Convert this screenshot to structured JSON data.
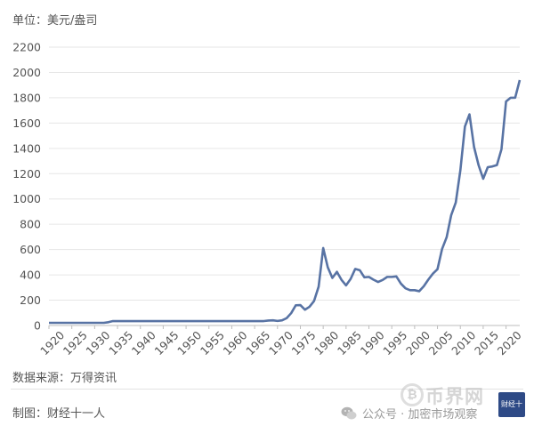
{
  "unit_label": "单位：美元/盎司",
  "footer": {
    "source": "数据来源：万得资讯",
    "maker": "制图：财经十一人",
    "wechat_account": "公众号 · 加密市场观察",
    "watermark_text": "币界网",
    "watermark_box_text": "财经十一人"
  },
  "chart_data": {
    "type": "line",
    "title": "",
    "xlabel": "",
    "ylabel": "",
    "ylim": [
      0,
      2200
    ],
    "xlim": [
      1920,
      2023
    ],
    "yticks": [
      0,
      200,
      400,
      600,
      800,
      1000,
      1200,
      1400,
      1600,
      1800,
      2000,
      2200
    ],
    "xticks": [
      1920,
      1925,
      1930,
      1935,
      1940,
      1945,
      1950,
      1955,
      1960,
      1965,
      1970,
      1975,
      1980,
      1985,
      1990,
      1995,
      2000,
      2005,
      2010,
      2015,
      2020
    ],
    "grid": true,
    "line_color": "#5873a4",
    "x": [
      1920,
      1921,
      1922,
      1923,
      1924,
      1925,
      1926,
      1927,
      1928,
      1929,
      1930,
      1931,
      1932,
      1933,
      1934,
      1935,
      1936,
      1937,
      1938,
      1939,
      1940,
      1941,
      1942,
      1943,
      1944,
      1945,
      1946,
      1947,
      1948,
      1949,
      1950,
      1951,
      1952,
      1953,
      1954,
      1955,
      1956,
      1957,
      1958,
      1959,
      1960,
      1961,
      1962,
      1963,
      1964,
      1965,
      1966,
      1967,
      1968,
      1969,
      1970,
      1971,
      1972,
      1973,
      1974,
      1975,
      1976,
      1977,
      1978,
      1979,
      1980,
      1981,
      1982,
      1983,
      1984,
      1985,
      1986,
      1987,
      1988,
      1989,
      1990,
      1991,
      1992,
      1993,
      1994,
      1995,
      1996,
      1997,
      1998,
      1999,
      2000,
      2001,
      2002,
      2003,
      2004,
      2005,
      2006,
      2007,
      2008,
      2009,
      2010,
      2011,
      2012,
      2013,
      2014,
      2015,
      2016,
      2017,
      2018,
      2019,
      2020,
      2021,
      2022,
      2023
    ],
    "values": [
      21,
      21,
      21,
      21,
      21,
      21,
      21,
      21,
      21,
      21,
      21,
      21,
      21,
      26,
      35,
      35,
      35,
      35,
      35,
      35,
      35,
      35,
      35,
      35,
      35,
      35,
      35,
      35,
      35,
      35,
      35,
      35,
      35,
      35,
      35,
      35,
      35,
      35,
      35,
      35,
      35,
      35,
      35,
      35,
      35,
      35,
      35,
      35,
      39,
      41,
      36,
      41,
      58,
      98,
      160,
      161,
      125,
      148,
      194,
      307,
      612,
      460,
      376,
      424,
      361,
      317,
      368,
      447,
      437,
      381,
      384,
      362,
      344,
      360,
      384,
      384,
      388,
      331,
      294,
      279,
      279,
      271,
      310,
      363,
      410,
      445,
      604,
      697,
      872,
      972,
      1225,
      1572,
      1669,
      1411,
      1266,
      1160,
      1251,
      1257,
      1268,
      1393,
      1770,
      1800,
      1801,
      1940
    ]
  }
}
